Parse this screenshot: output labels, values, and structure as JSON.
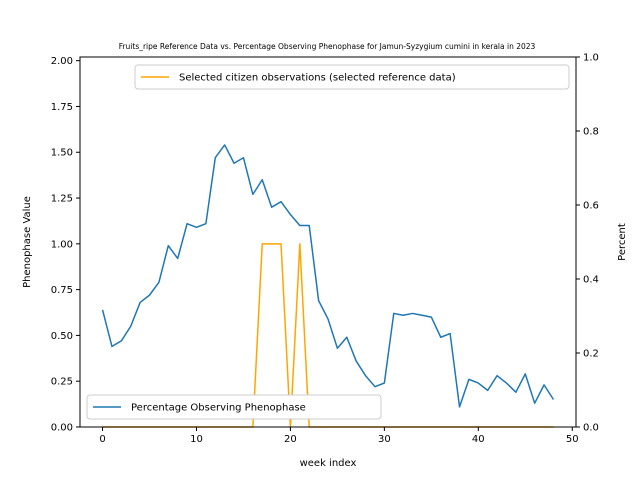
{
  "chart_data": {
    "type": "line",
    "title": "Fruits_ripe Reference Data vs. Percentage Observing Phenophase for Jamun-Syzygium cumini in kerala in 2023",
    "xlabel": "week index",
    "ylabel_left": "Phenophase Value",
    "ylabel_right": "Percent",
    "xlim": [
      -2.4,
      50.4
    ],
    "ylim_left": [
      0,
      2.02
    ],
    "ylim_right": [
      0,
      1.0
    ],
    "x_ticks": [
      "0",
      "10",
      "20",
      "30",
      "40",
      "50"
    ],
    "y_left_ticks": [
      "0.00",
      "0.25",
      "0.50",
      "0.75",
      "1.00",
      "1.25",
      "1.50",
      "1.75",
      "2.00"
    ],
    "y_right_ticks": [
      "0.0",
      "0.2",
      "0.4",
      "0.6",
      "0.8",
      "1.0"
    ],
    "grid": false,
    "series": [
      {
        "name": "Percentage Observing Phenophase",
        "axis": "left",
        "color": "#1f77b4",
        "legend_position": "lower-left",
        "x": [
          0,
          1,
          2,
          3,
          4,
          5,
          6,
          7,
          8,
          9,
          10,
          11,
          12,
          13,
          14,
          15,
          16,
          17,
          18,
          19,
          20,
          21,
          22,
          23,
          24,
          25,
          26,
          27,
          28,
          29,
          30,
          31,
          32,
          33,
          34,
          35,
          36,
          37,
          38,
          39,
          40,
          41,
          42,
          43,
          44,
          45,
          46,
          47,
          48
        ],
        "values": [
          0.64,
          0.44,
          0.47,
          0.55,
          0.68,
          0.72,
          0.79,
          0.99,
          0.92,
          1.11,
          1.09,
          1.11,
          1.47,
          1.54,
          1.44,
          1.47,
          1.27,
          1.35,
          1.2,
          1.23,
          1.16,
          1.1,
          1.1,
          0.69,
          0.59,
          0.43,
          0.49,
          0.36,
          0.28,
          0.22,
          0.24,
          0.62,
          0.61,
          0.62,
          0.61,
          0.6,
          0.49,
          0.51,
          0.11,
          0.26,
          0.24,
          0.2,
          0.28,
          0.24,
          0.19,
          0.29,
          0.13,
          0.23,
          0.15
        ]
      },
      {
        "name": "Selected citizen observations (selected reference data)",
        "axis": "left",
        "color": "#ffa500",
        "legend_position": "top-right",
        "x": [
          0,
          1,
          2,
          3,
          4,
          5,
          6,
          7,
          8,
          9,
          10,
          11,
          12,
          13,
          14,
          15,
          16,
          17,
          18,
          19,
          20,
          21,
          22,
          23,
          24,
          25,
          26,
          27,
          28,
          29,
          30,
          31,
          32,
          33,
          34,
          35,
          36,
          37,
          38,
          39,
          40,
          41,
          42,
          43,
          44,
          45,
          46,
          47,
          48
        ],
        "values": [
          0,
          0,
          0,
          0,
          0,
          0,
          0,
          0,
          0,
          0,
          0,
          0,
          0,
          0,
          0,
          0,
          0,
          1,
          1,
          1,
          0,
          1,
          0,
          0,
          0,
          0,
          0,
          0,
          0,
          0,
          0,
          0,
          0,
          0,
          0,
          0,
          0,
          0,
          0,
          0,
          0,
          0,
          0,
          0,
          0,
          0,
          0,
          0,
          0
        ]
      }
    ]
  }
}
